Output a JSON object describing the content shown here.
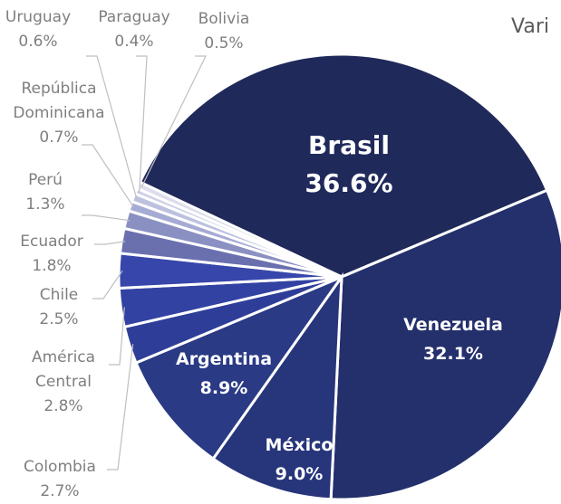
{
  "chart_data": {
    "type": "pie",
    "title": "Vari",
    "categories": [
      "Brasil",
      "Venezuela",
      "México",
      "Argentina",
      "Colombia",
      "América Central",
      "Chile",
      "Ecuador",
      "Perú",
      "República Dominicana",
      "Uruguay",
      "Paraguay",
      "Bolivia"
    ],
    "values": [
      36.6,
      32.1,
      9.0,
      8.9,
      2.7,
      2.8,
      2.5,
      1.8,
      1.3,
      0.7,
      0.6,
      0.4,
      0.5
    ],
    "value_labels": [
      "36.6%",
      "32.1%",
      "9.0%",
      "8.9%",
      "2.7%",
      "2.8%",
      "2.5%",
      "1.8%",
      "1.3%",
      "0.7%",
      "0.6%",
      "0.4%",
      "0.5%"
    ],
    "colors": [
      "#1f295a",
      "#24306c",
      "#27357a",
      "#2a3a84",
      "#2e3e98",
      "#3242a2",
      "#3646ab",
      "#6a70ae",
      "#8b90c3",
      "#a6abd4",
      "#bdc1e0",
      "#cdd0e7",
      "#dcdeee"
    ]
  }
}
